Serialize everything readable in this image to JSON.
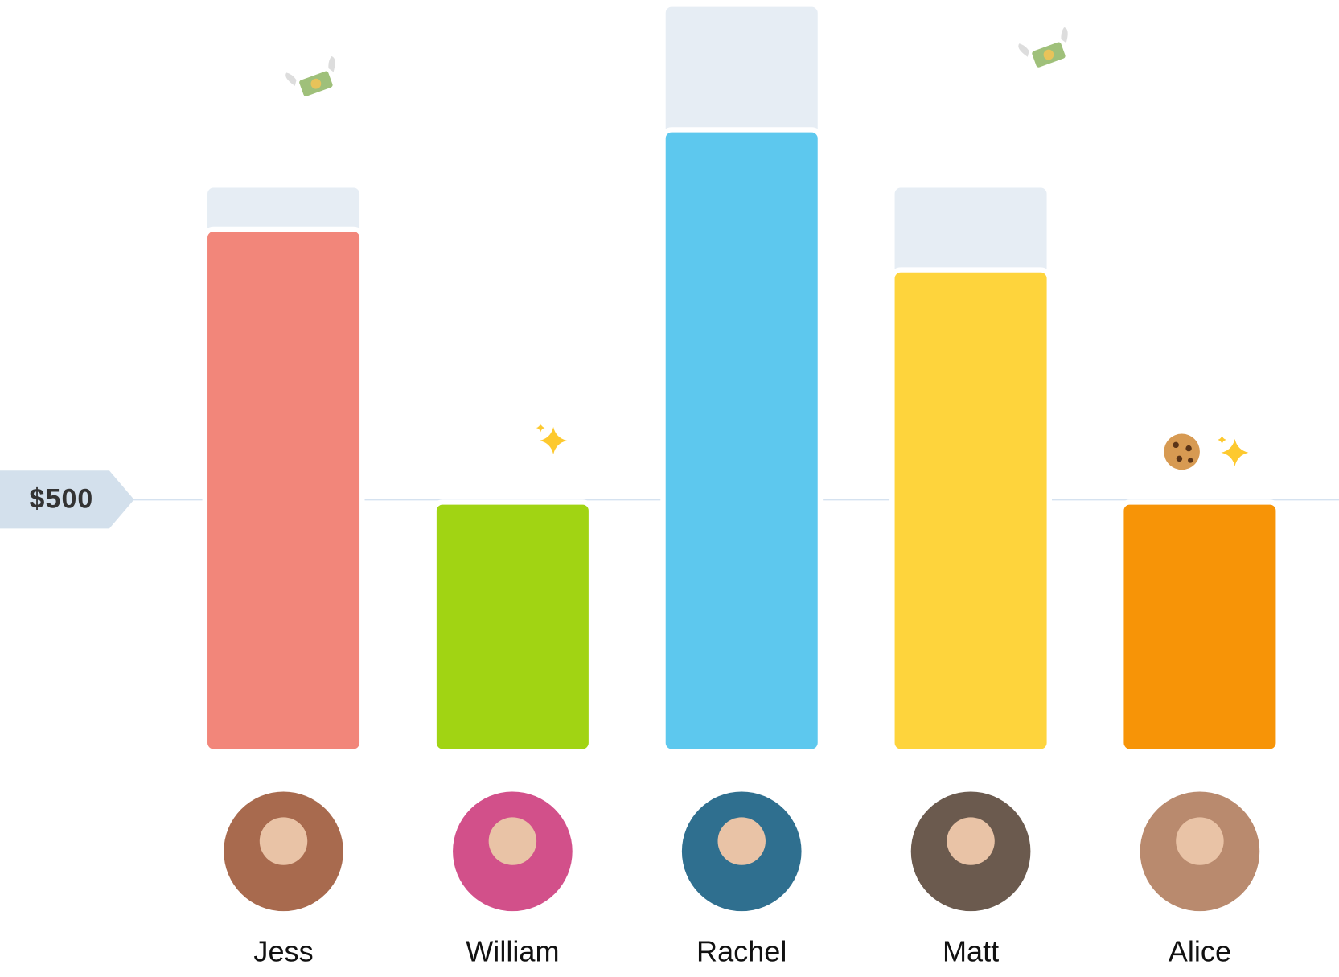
{
  "chart_data": {
    "type": "bar",
    "categories": [
      "Jess",
      "William",
      "Rachel",
      "Matt",
      "Alice"
    ],
    "series": [
      {
        "color": "#e6edf4",
        "values": [
          1124,
          null,
          1483,
          1124,
          null
        ]
      },
      {
        "colors": [
          "#f2867a",
          "#a1d413",
          "#5dc8ee",
          "#fed43c",
          "#f79407"
        ],
        "values": [
          1037,
          495,
          1234,
          956,
          495
        ]
      }
    ],
    "ylim": [
      0,
      1500
    ],
    "yticks": [
      {
        "value": 500,
        "label": "$500"
      }
    ]
  }
}
